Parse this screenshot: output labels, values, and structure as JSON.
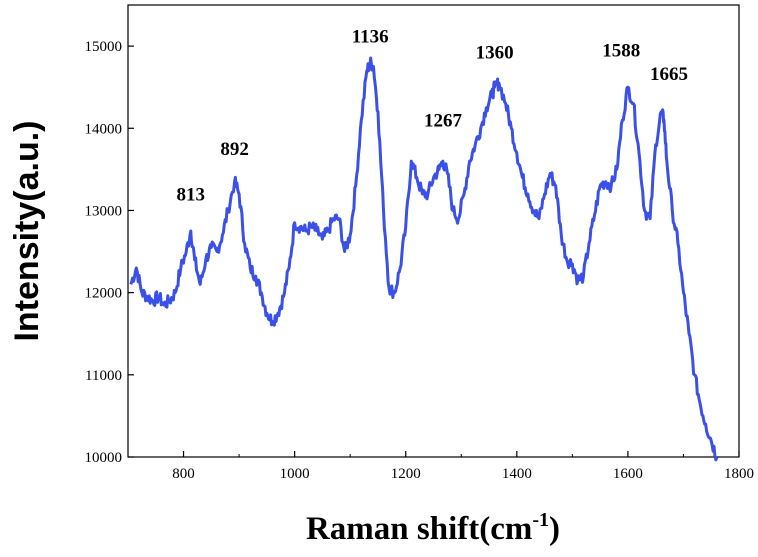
{
  "chart_data": {
    "type": "line",
    "xlabel": "Raman shift(cm",
    "xlabel_sup": "-1",
    "xlabel_close": ")",
    "ylabel": "Intensity(a.u.)",
    "xlim": [
      700,
      1800
    ],
    "ylim": [
      10000,
      15500
    ],
    "x_ticks": [
      800,
      1000,
      1200,
      1400,
      1600,
      1800
    ],
    "y_ticks": [
      10000,
      11000,
      12000,
      13000,
      14000,
      15000
    ],
    "line_color": "#3a50e8",
    "grid": false,
    "annotations": [
      {
        "text": "813",
        "x": 813,
        "y": 12780
      },
      {
        "text": "892",
        "x": 892,
        "y": 13380
      },
      {
        "text": "1136",
        "x": 1136,
        "y": 14800
      },
      {
        "text": "1267",
        "x": 1267,
        "y": 13680
      },
      {
        "text": "1360",
        "x": 1360,
        "y": 14560
      },
      {
        "text": "1588",
        "x": 1588,
        "y": 14560
      },
      {
        "text": "1665",
        "x": 1665,
        "y": 14220
      }
    ],
    "series": [
      {
        "x": [
          705,
          715,
          725,
          735,
          745,
          755,
          765,
          775,
          785,
          795,
          805,
          813,
          820,
          830,
          840,
          850,
          860,
          870,
          880,
          892,
          900,
          910,
          920,
          930,
          940,
          950,
          960,
          970,
          980,
          990,
          1000,
          1010,
          1020,
          1030,
          1040,
          1050,
          1060,
          1070,
          1080,
          1090,
          1100,
          1110,
          1120,
          1130,
          1136,
          1142,
          1150,
          1160,
          1170,
          1180,
          1190,
          1200,
          1210,
          1220,
          1230,
          1240,
          1250,
          1260,
          1267,
          1275,
          1285,
          1295,
          1305,
          1315,
          1325,
          1335,
          1345,
          1355,
          1360,
          1368,
          1380,
          1390,
          1400,
          1410,
          1420,
          1430,
          1440,
          1450,
          1460,
          1470,
          1480,
          1490,
          1500,
          1510,
          1520,
          1530,
          1540,
          1550,
          1560,
          1570,
          1580,
          1590,
          1600,
          1610,
          1620,
          1630,
          1640,
          1650,
          1660,
          1665,
          1670,
          1680,
          1690,
          1700,
          1710,
          1720,
          1730,
          1740,
          1750,
          1760
        ],
        "y": [
          12100,
          12300,
          12000,
          11950,
          11900,
          11950,
          11850,
          11900,
          12000,
          12300,
          12500,
          12750,
          12400,
          12100,
          12400,
          12550,
          12500,
          12700,
          13000,
          13350,
          13200,
          12600,
          12300,
          12200,
          12000,
          11750,
          11650,
          11750,
          11950,
          12300,
          12850,
          12800,
          12750,
          12800,
          12750,
          12650,
          12750,
          12900,
          12900,
          12500,
          12700,
          13300,
          14100,
          14700,
          14800,
          14750,
          14200,
          13000,
          12050,
          12000,
          12300,
          12800,
          13600,
          13400,
          13200,
          13200,
          13400,
          13500,
          13600,
          13450,
          13000,
          12900,
          13200,
          13600,
          13800,
          14000,
          14250,
          14400,
          14500,
          14550,
          14300,
          14000,
          13700,
          13400,
          13200,
          13000,
          12900,
          13200,
          13450,
          13300,
          12700,
          12400,
          12350,
          12150,
          12200,
          12600,
          12950,
          13300,
          13350,
          13300,
          13500,
          14100,
          14500,
          14300,
          13700,
          13000,
          12900,
          13800,
          14200,
          14100,
          13600,
          13000,
          12600,
          12000,
          11500,
          11000,
          10650,
          10400,
          10200,
          10000
        ]
      }
    ]
  }
}
